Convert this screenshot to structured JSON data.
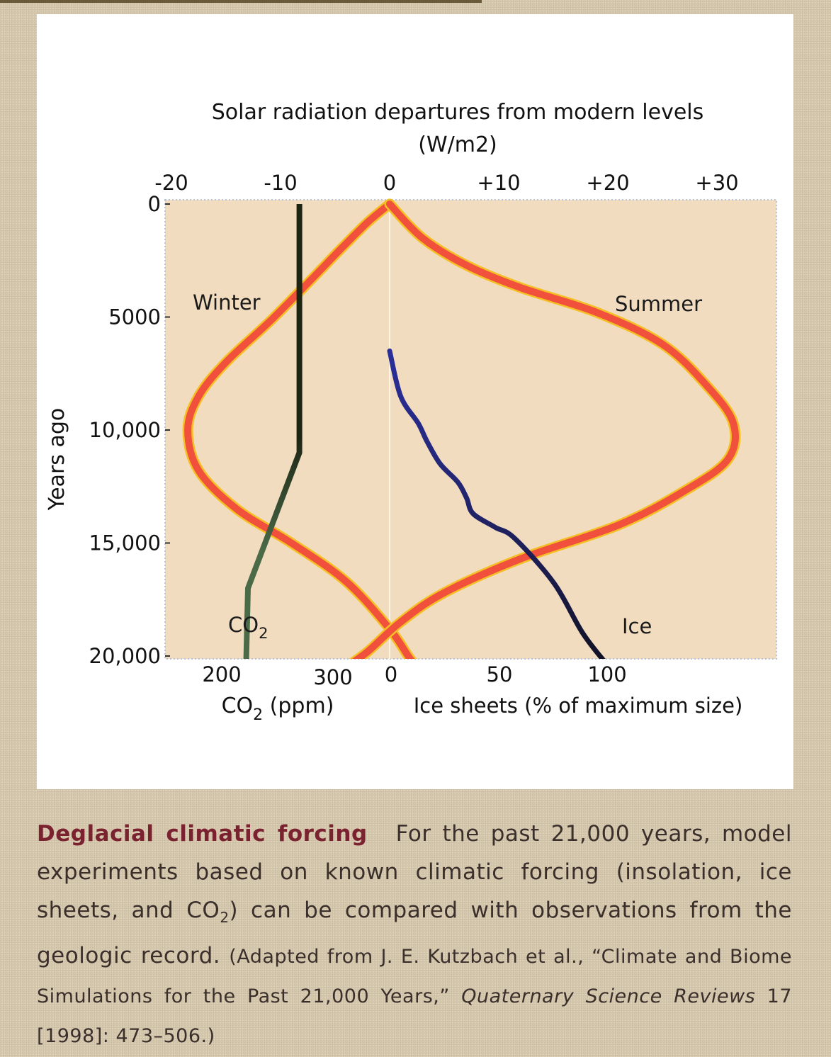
{
  "chart_data": {
    "type": "line",
    "title": "Solar radiation departures from modern levels",
    "title_units": "(W/m2)",
    "ylabel": "Years ago",
    "y_axis": {
      "ylim": [
        0,
        20500
      ],
      "ticks": [
        0,
        5000,
        10000,
        15000,
        20000
      ],
      "tick_labels": [
        "0",
        "5000",
        "10,000",
        "15,000",
        "20,000"
      ],
      "inverted": true
    },
    "top_axis": {
      "xlim": [
        -20.5,
        35
      ],
      "ticks": [
        -20,
        -10,
        0,
        10,
        20,
        30
      ],
      "tick_labels": [
        "-20",
        "-10",
        "0",
        "+10",
        "+20",
        "+30"
      ]
    },
    "bottom_axes": {
      "co2": {
        "label": "CO2 (ppm)",
        "ticks": [
          200,
          300
        ],
        "tick_labels": [
          "200",
          "300"
        ]
      },
      "ice": {
        "label": "Ice sheets (% of maximum size)",
        "ticks": [
          0,
          50,
          100
        ],
        "tick_labels": [
          "0",
          "50",
          "100"
        ]
      }
    },
    "series": [
      {
        "name": "Winter",
        "axis": "solar_wm2",
        "points": [
          [
            0,
            0
          ],
          [
            -2,
            800
          ],
          [
            -4.5,
            2000
          ],
          [
            -7.5,
            3500
          ],
          [
            -11,
            5200
          ],
          [
            -15,
            7000
          ],
          [
            -17.5,
            8500
          ],
          [
            -18.5,
            10000
          ],
          [
            -17.5,
            11800
          ],
          [
            -14,
            13500
          ],
          [
            -9,
            15000
          ],
          [
            -4,
            16700
          ],
          [
            0,
            18800
          ],
          [
            2,
            20200
          ],
          [
            3,
            20500
          ]
        ]
      },
      {
        "name": "Summer",
        "axis": "solar_wm2",
        "points": [
          [
            0,
            0
          ],
          [
            3,
            1500
          ],
          [
            7,
            2700
          ],
          [
            12,
            3700
          ],
          [
            19,
            4800
          ],
          [
            25,
            6200
          ],
          [
            29,
            8000
          ],
          [
            31.5,
            9700
          ],
          [
            31,
            11300
          ],
          [
            27,
            12700
          ],
          [
            21,
            14200
          ],
          [
            12,
            15700
          ],
          [
            5,
            17200
          ],
          [
            1,
            18500
          ],
          [
            -2,
            19800
          ],
          [
            -4,
            20500
          ]
        ]
      },
      {
        "name": "CO2",
        "axis": "co2_ppm",
        "points": [
          [
            280,
            0
          ],
          [
            280,
            11000
          ],
          [
            227,
            17000
          ],
          [
            225,
            20500
          ]
        ]
      },
      {
        "name": "Ice",
        "axis": "ice_pct",
        "points": [
          [
            0,
            6500
          ],
          [
            5,
            8500
          ],
          [
            13,
            9700
          ],
          [
            17,
            10500
          ],
          [
            23,
            11500
          ],
          [
            31,
            12300
          ],
          [
            35,
            13000
          ],
          [
            38,
            13700
          ],
          [
            48,
            14300
          ],
          [
            57,
            14800
          ],
          [
            75,
            16800
          ],
          [
            88,
            19000
          ],
          [
            100,
            20500
          ]
        ]
      }
    ],
    "annotations": [
      "Winter",
      "Summer",
      "CO2",
      "Ice"
    ],
    "colors": {
      "plot_bg": "#f2dcc0",
      "winter_summer": "#f0503c",
      "winter_summer_edge": "#f5c026",
      "co2_top": "#1c2412",
      "co2_bottom": "#4a6a48",
      "ice_top": "#2a2f9a",
      "ice_bottom": "#111122",
      "grid": "#b8c4d8"
    },
    "grid": false,
    "legend": "none"
  },
  "caption": {
    "heading": "Deglacial climatic forcing",
    "text_1": "For the past 21,000 years, model experiments based on known climatic forcing (insolation, ice sheets, and CO",
    "sub_1": "2",
    "text_2": ") can be compared with observations from the geologic record. ",
    "text_3": "(Adapted from J. E. Kutzbach et al., “Climate and Biome Simulations for the Past 21,000 Years,” ",
    "journal": "Quaternary Science Reviews",
    "text_4": " 17 [1998]: 473–506.)"
  }
}
